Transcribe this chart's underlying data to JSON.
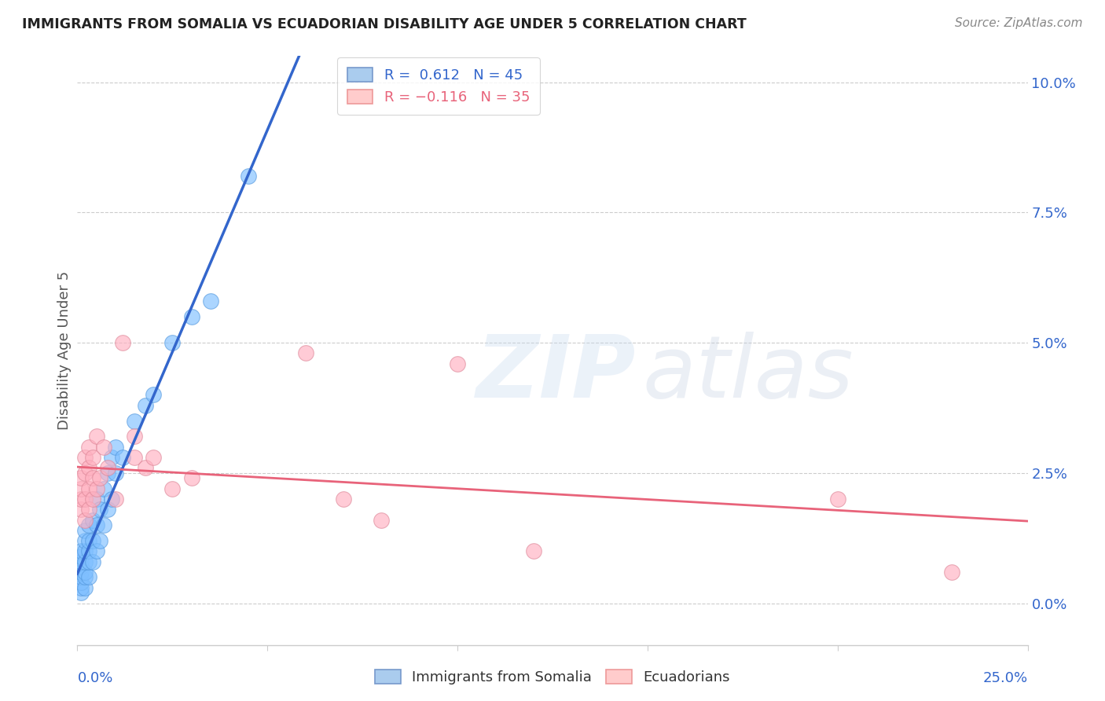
{
  "title": "IMMIGRANTS FROM SOMALIA VS ECUADORIAN DISABILITY AGE UNDER 5 CORRELATION CHART",
  "source": "Source: ZipAtlas.com",
  "ylabel": "Disability Age Under 5",
  "background_color": "#ffffff",
  "grid_color": "#cccccc",
  "xlim": [
    0.0,
    0.25
  ],
  "ylim": [
    -0.008,
    0.105
  ],
  "ytick_vals": [
    0.0,
    0.025,
    0.05,
    0.075,
    0.1
  ],
  "ytick_labels": [
    "0.0%",
    "2.5%",
    "5.0%",
    "7.5%",
    "10.0%"
  ],
  "somalia_scatter": [
    [
      0.001,
      0.002
    ],
    [
      0.001,
      0.003
    ],
    [
      0.001,
      0.004
    ],
    [
      0.001,
      0.005
    ],
    [
      0.001,
      0.006
    ],
    [
      0.001,
      0.007
    ],
    [
      0.001,
      0.008
    ],
    [
      0.001,
      0.009
    ],
    [
      0.001,
      0.01
    ],
    [
      0.002,
      0.003
    ],
    [
      0.002,
      0.005
    ],
    [
      0.002,
      0.006
    ],
    [
      0.002,
      0.008
    ],
    [
      0.002,
      0.01
    ],
    [
      0.002,
      0.012
    ],
    [
      0.002,
      0.014
    ],
    [
      0.003,
      0.005
    ],
    [
      0.003,
      0.008
    ],
    [
      0.003,
      0.01
    ],
    [
      0.003,
      0.012
    ],
    [
      0.003,
      0.015
    ],
    [
      0.004,
      0.008
    ],
    [
      0.004,
      0.012
    ],
    [
      0.004,
      0.016
    ],
    [
      0.005,
      0.01
    ],
    [
      0.005,
      0.015
    ],
    [
      0.005,
      0.02
    ],
    [
      0.006,
      0.012
    ],
    [
      0.006,
      0.018
    ],
    [
      0.007,
      0.015
    ],
    [
      0.007,
      0.022
    ],
    [
      0.008,
      0.018
    ],
    [
      0.008,
      0.025
    ],
    [
      0.009,
      0.02
    ],
    [
      0.009,
      0.028
    ],
    [
      0.01,
      0.025
    ],
    [
      0.01,
      0.03
    ],
    [
      0.012,
      0.028
    ],
    [
      0.015,
      0.035
    ],
    [
      0.018,
      0.038
    ],
    [
      0.02,
      0.04
    ],
    [
      0.025,
      0.05
    ],
    [
      0.03,
      0.055
    ],
    [
      0.035,
      0.058
    ],
    [
      0.045,
      0.082
    ]
  ],
  "ecuador_scatter": [
    [
      0.001,
      0.018
    ],
    [
      0.001,
      0.02
    ],
    [
      0.001,
      0.022
    ],
    [
      0.001,
      0.024
    ],
    [
      0.002,
      0.016
    ],
    [
      0.002,
      0.02
    ],
    [
      0.002,
      0.025
    ],
    [
      0.002,
      0.028
    ],
    [
      0.003,
      0.018
    ],
    [
      0.003,
      0.022
    ],
    [
      0.003,
      0.026
    ],
    [
      0.003,
      0.03
    ],
    [
      0.004,
      0.02
    ],
    [
      0.004,
      0.024
    ],
    [
      0.004,
      0.028
    ],
    [
      0.005,
      0.022
    ],
    [
      0.005,
      0.032
    ],
    [
      0.006,
      0.024
    ],
    [
      0.007,
      0.03
    ],
    [
      0.008,
      0.026
    ],
    [
      0.01,
      0.02
    ],
    [
      0.012,
      0.05
    ],
    [
      0.015,
      0.028
    ],
    [
      0.015,
      0.032
    ],
    [
      0.018,
      0.026
    ],
    [
      0.02,
      0.028
    ],
    [
      0.025,
      0.022
    ],
    [
      0.03,
      0.024
    ],
    [
      0.06,
      0.048
    ],
    [
      0.07,
      0.02
    ],
    [
      0.08,
      0.016
    ],
    [
      0.1,
      0.046
    ],
    [
      0.12,
      0.01
    ],
    [
      0.2,
      0.02
    ],
    [
      0.23,
      0.006
    ]
  ],
  "blue_line_color": "#3366cc",
  "pink_line_color": "#e8637a",
  "dash_line_color": "#aaaaaa",
  "blue_scatter_color": "#7fbfff",
  "pink_scatter_color": "#ffb0c0"
}
